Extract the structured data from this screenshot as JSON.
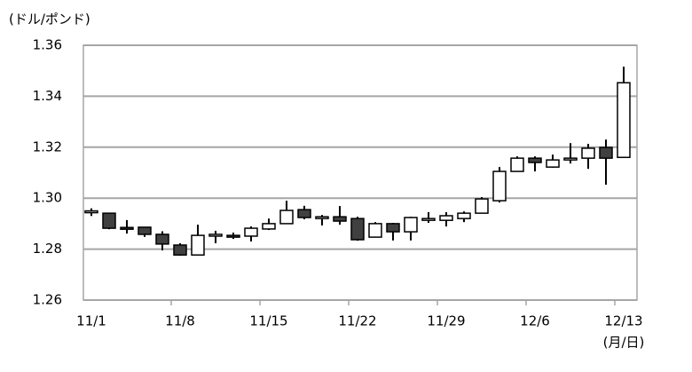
{
  "chart_data": {
    "type": "candlestick",
    "y_label": "(ドル/ポンド)",
    "x_label": "(月/日)",
    "categories": [
      "11/1",
      null,
      null,
      null,
      null,
      "11/8",
      null,
      null,
      null,
      null,
      "11/15",
      null,
      null,
      null,
      null,
      "11/22",
      null,
      null,
      null,
      null,
      "11/29",
      null,
      null,
      null,
      null,
      "12/6",
      null,
      null,
      null,
      null,
      "12/13"
    ],
    "open": [
      1.2943,
      1.2941,
      1.2885,
      1.2886,
      1.2858,
      1.2816,
      1.2777,
      1.2851,
      1.2854,
      1.2851,
      1.2879,
      1.29,
      1.2955,
      1.2924,
      1.2927,
      1.292,
      1.2847,
      1.29,
      1.2868,
      1.2917,
      1.2913,
      1.292,
      1.2941,
      1.299,
      1.3105,
      1.3157,
      1.3122,
      1.3154,
      1.3157,
      1.3199,
      1.316
    ],
    "high": [
      1.296,
      1.2941,
      1.2914,
      1.2886,
      1.287,
      1.2823,
      1.2896,
      1.2872,
      1.2865,
      1.2889,
      1.292,
      1.299,
      1.297,
      1.2934,
      1.2969,
      1.2927,
      1.2906,
      1.2903,
      1.2927,
      1.2945,
      1.2945,
      1.2948,
      1.3004,
      1.3122,
      1.3164,
      1.3164,
      1.3171,
      1.3216,
      1.3213,
      1.323,
      1.3516
    ],
    "low": [
      1.293,
      1.2878,
      1.2861,
      1.2848,
      1.2795,
      1.2774,
      1.2777,
      1.2823,
      1.284,
      1.283,
      1.2875,
      1.29,
      1.2917,
      1.2893,
      1.2896,
      1.2833,
      1.2847,
      1.2834,
      1.2834,
      1.2903,
      1.2889,
      1.2906,
      1.2941,
      1.2983,
      1.3105,
      1.3105,
      1.3119,
      1.3136,
      1.3115,
      1.3053,
      1.316
    ],
    "close": [
      1.295,
      1.2882,
      1.2882,
      1.2858,
      1.282,
      1.2777,
      1.2854,
      1.2858,
      1.2851,
      1.2882,
      1.29,
      1.2952,
      1.2924,
      1.2927,
      1.291,
      1.2837,
      1.29,
      1.2868,
      1.2924,
      1.292,
      1.2931,
      1.2941,
      1.2997,
      1.3105,
      1.3157,
      1.314,
      1.315,
      1.3157,
      1.3196,
      1.3157,
      1.3453
    ],
    "up_color": "#ffffff",
    "down_color": "#404040",
    "ylim": [
      1.26,
      1.36
    ],
    "yticks": [
      1.26,
      1.28,
      {
        "value": 1.3,
        "label": "1.30"
      },
      1.32,
      1.34,
      1.36
    ],
    "grid": true
  }
}
